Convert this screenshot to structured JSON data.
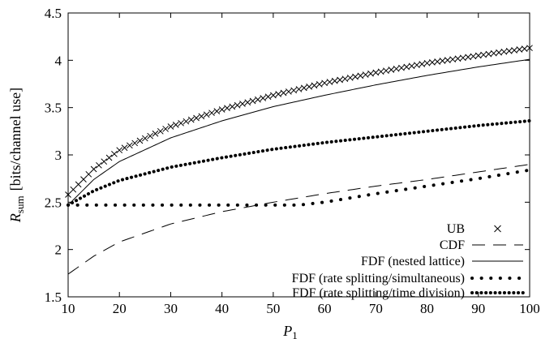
{
  "chart_data": {
    "type": "line",
    "xlabel": "P",
    "xlabel_sub": "1",
    "ylabel": "R",
    "ylabel_sub": "sum",
    "ylabel_unit": "[bits/channel use]",
    "xlim": [
      10,
      100
    ],
    "ylim": [
      1.5,
      4.5
    ],
    "xticks": [
      "10",
      "20",
      "30",
      "40",
      "50",
      "60",
      "70",
      "80",
      "90",
      "100"
    ],
    "yticks": [
      "1.5",
      "2",
      "2.5",
      "3",
      "3.5",
      "4",
      "4.5"
    ],
    "grid": false,
    "legend_position": "bottom-right",
    "series": [
      {
        "name": "UB",
        "style": "crosses",
        "x": [
          10,
          15,
          20,
          30,
          40,
          50,
          60,
          70,
          80,
          90,
          100
        ],
        "y": [
          2.58,
          2.85,
          3.05,
          3.3,
          3.48,
          3.63,
          3.76,
          3.87,
          3.97,
          4.05,
          4.13
        ]
      },
      {
        "name": "CDF",
        "style": "dashed",
        "x": [
          10,
          15,
          20,
          30,
          40,
          50,
          60,
          70,
          80,
          90,
          100
        ],
        "y": [
          1.74,
          1.93,
          2.08,
          2.27,
          2.4,
          2.5,
          2.59,
          2.67,
          2.74,
          2.82,
          2.9
        ]
      },
      {
        "name": "FDF (nested lattice)",
        "style": "solid",
        "x": [
          10,
          15,
          20,
          30,
          40,
          50,
          60,
          70,
          80,
          90,
          100
        ],
        "y": [
          2.47,
          2.74,
          2.93,
          3.18,
          3.36,
          3.51,
          3.63,
          3.74,
          3.84,
          3.93,
          4.01
        ]
      },
      {
        "name": "FDF (rate splitting/simultaneous)",
        "style": "sparse-dots",
        "x": [
          10,
          15,
          20,
          30,
          40,
          50,
          55,
          60,
          70,
          80,
          90,
          100
        ],
        "y": [
          2.47,
          2.47,
          2.47,
          2.47,
          2.47,
          2.47,
          2.47,
          2.5,
          2.59,
          2.67,
          2.75,
          2.84
        ]
      },
      {
        "name": "FDF (rate splitting/time division)",
        "style": "dense-dots",
        "x": [
          10,
          15,
          20,
          30,
          40,
          50,
          60,
          70,
          80,
          90,
          100
        ],
        "y": [
          2.47,
          2.62,
          2.73,
          2.87,
          2.97,
          3.06,
          3.13,
          3.19,
          3.25,
          3.31,
          3.36
        ]
      }
    ]
  }
}
